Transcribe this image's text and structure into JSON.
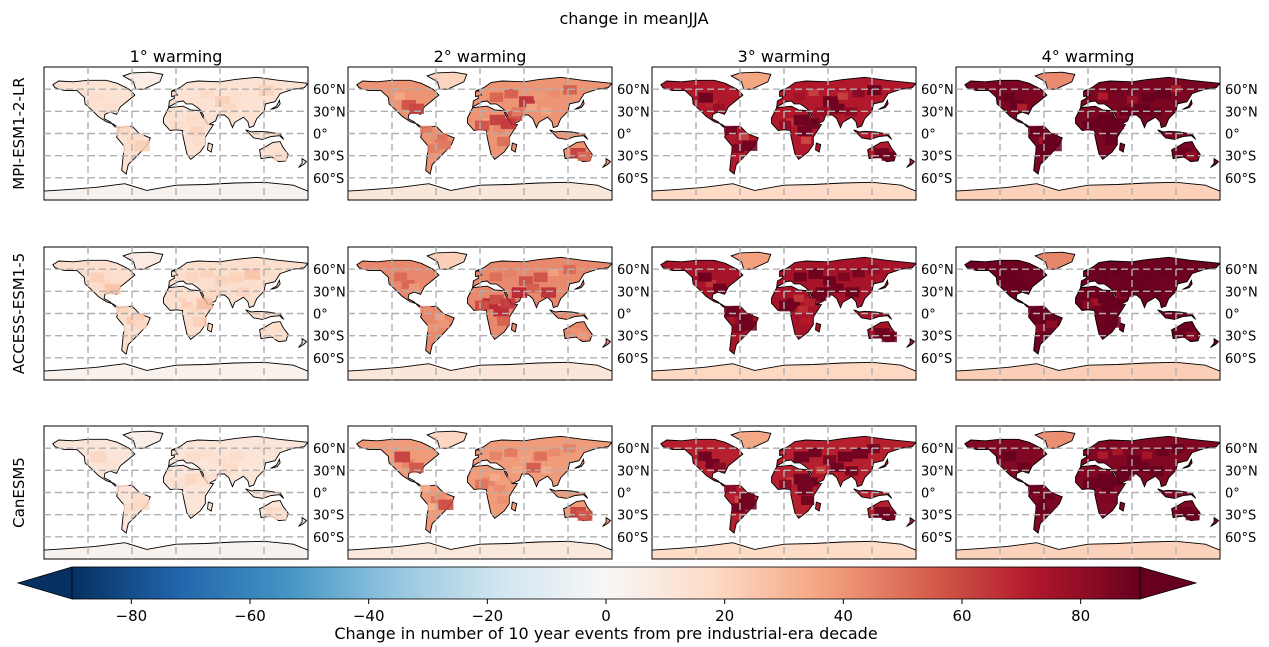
{
  "figure": {
    "title": "change in meanJJA"
  },
  "chart_data": {
    "type": "heatmap",
    "title": "change in meanJJA",
    "rows": [
      "MPI-ESM1-2-LR",
      "ACCESS-ESM1-5",
      "CanESM5"
    ],
    "columns": [
      "1° warming",
      "2° warming",
      "3° warming",
      "4° warming"
    ],
    "lat_ticks": [
      "60°N",
      "30°N",
      "0°",
      "30°S",
      "60°S"
    ],
    "lat_values": [
      60,
      30,
      0,
      -30,
      -60
    ],
    "lon_gridlines": [
      -120,
      -60,
      0,
      60,
      120
    ],
    "colorbar": {
      "label": "Change in number  of 10 year events from pre industrial-era decade",
      "ticks": [
        -80,
        -60,
        -40,
        -20,
        0,
        20,
        40,
        60,
        80
      ],
      "range": [
        -90,
        90
      ],
      "extend": "both",
      "colormap": "RdBu_r",
      "colors": [
        "#053061",
        "#2166ac",
        "#4393c3",
        "#92c5de",
        "#d1e5f0",
        "#f7f7f7",
        "#fddbc7",
        "#f4a582",
        "#d6604d",
        "#b2182b",
        "#67001f"
      ]
    },
    "panel_intensity_by_warming_level": [
      0.15,
      0.45,
      0.8,
      0.95
    ],
    "grid": true
  }
}
